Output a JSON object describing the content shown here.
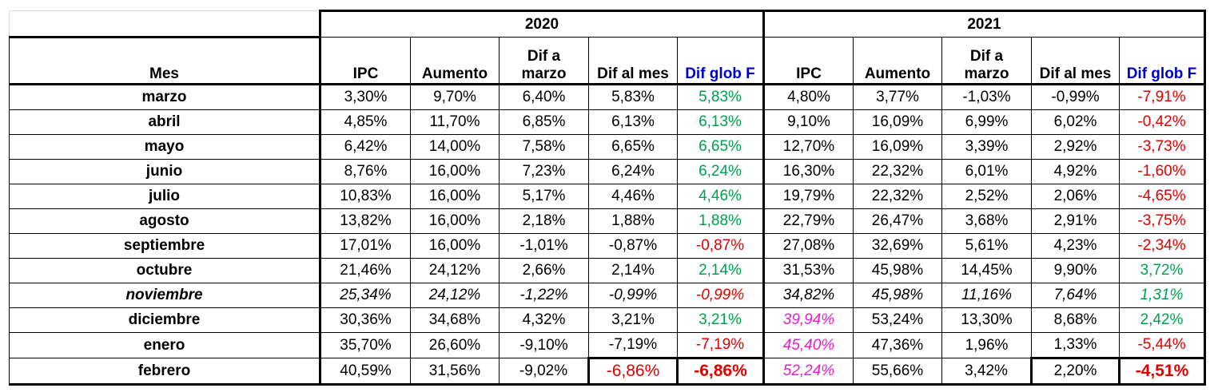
{
  "years": [
    "2020",
    "2021"
  ],
  "headers": {
    "mes": "Mes",
    "cols": [
      {
        "line1": "",
        "line2": "IPC"
      },
      {
        "line1": "",
        "line2": "Aumento"
      },
      {
        "line1": "Dif a",
        "line2": "marzo"
      },
      {
        "line1": "",
        "line2": "Dif al mes"
      },
      {
        "line1": "",
        "line2": "Dif glob F"
      }
    ]
  },
  "rows": [
    {
      "mes": "marzo",
      "v2020": [
        "3,30%",
        "9,70%",
        "6,40%",
        "5,83%",
        "5,83%"
      ],
      "v2021": [
        "4,80%",
        "3,77%",
        "-1,03%",
        "-0,99%",
        "-7,91%"
      ]
    },
    {
      "mes": "abril",
      "v2020": [
        "4,85%",
        "11,70%",
        "6,85%",
        "6,13%",
        "6,13%"
      ],
      "v2021": [
        "9,10%",
        "16,09%",
        "6,99%",
        "6,02%",
        "-0,42%"
      ]
    },
    {
      "mes": "mayo",
      "v2020": [
        "6,42%",
        "14,00%",
        "7,58%",
        "6,65%",
        "6,65%"
      ],
      "v2021": [
        "12,70%",
        "16,09%",
        "3,39%",
        "2,92%",
        "-3,73%"
      ]
    },
    {
      "mes": "junio",
      "v2020": [
        "8,76%",
        "16,00%",
        "7,23%",
        "6,24%",
        "6,24%"
      ],
      "v2021": [
        "16,30%",
        "22,32%",
        "6,01%",
        "4,92%",
        "-1,60%"
      ]
    },
    {
      "mes": "julio",
      "v2020": [
        "10,83%",
        "16,00%",
        "5,17%",
        "4,46%",
        "4,46%"
      ],
      "v2021": [
        "19,79%",
        "22,32%",
        "2,52%",
        "2,06%",
        "-4,65%"
      ]
    },
    {
      "mes": "agosto",
      "v2020": [
        "13,82%",
        "16,00%",
        "2,18%",
        "1,88%",
        "1,88%"
      ],
      "v2021": [
        "22,79%",
        "26,47%",
        "3,68%",
        "2,91%",
        "-3,75%"
      ]
    },
    {
      "mes": "septiembre",
      "v2020": [
        "17,01%",
        "16,00%",
        "-1,01%",
        "-0,87%",
        "-0,87%"
      ],
      "v2021": [
        "27,08%",
        "32,69%",
        "5,61%",
        "4,23%",
        "-2,34%"
      ]
    },
    {
      "mes": "octubre",
      "v2020": [
        "21,46%",
        "24,12%",
        "2,66%",
        "2,14%",
        "2,14%"
      ],
      "v2021": [
        "31,53%",
        "45,98%",
        "14,45%",
        "9,90%",
        "3,72%"
      ]
    },
    {
      "mes": "noviembre",
      "v2020": [
        "25,34%",
        "24,12%",
        "-1,22%",
        "-0,99%",
        "-0,99%"
      ],
      "v2021": [
        "34,82%",
        "45,98%",
        "11,16%",
        "7,64%",
        "1,31%"
      ]
    },
    {
      "mes": "diciembre",
      "v2020": [
        "30,36%",
        "34,68%",
        "4,32%",
        "3,21%",
        "3,21%"
      ],
      "v2021": [
        "39,94%",
        "53,24%",
        "13,30%",
        "8,68%",
        "2,42%"
      ]
    },
    {
      "mes": "enero",
      "v2020": [
        "35,70%",
        "26,60%",
        "-9,10%",
        "-7,19%",
        "-7,19%"
      ],
      "v2021": [
        "45,40%",
        "47,36%",
        "1,96%",
        "1,33%",
        "-5,44%"
      ]
    },
    {
      "mes": "febrero",
      "v2020": [
        "40,59%",
        "31,56%",
        "-9,02%",
        "-6,86%",
        "-6,86%"
      ],
      "v2021": [
        "52,24%",
        "55,66%",
        "3,42%",
        "2,20%",
        "-4,51%"
      ]
    }
  ],
  "colors": {
    "positive": "#00a050",
    "negative": "#e00000",
    "header_blue": "#0000cc",
    "ipc_highlight": "#e01fd0"
  }
}
